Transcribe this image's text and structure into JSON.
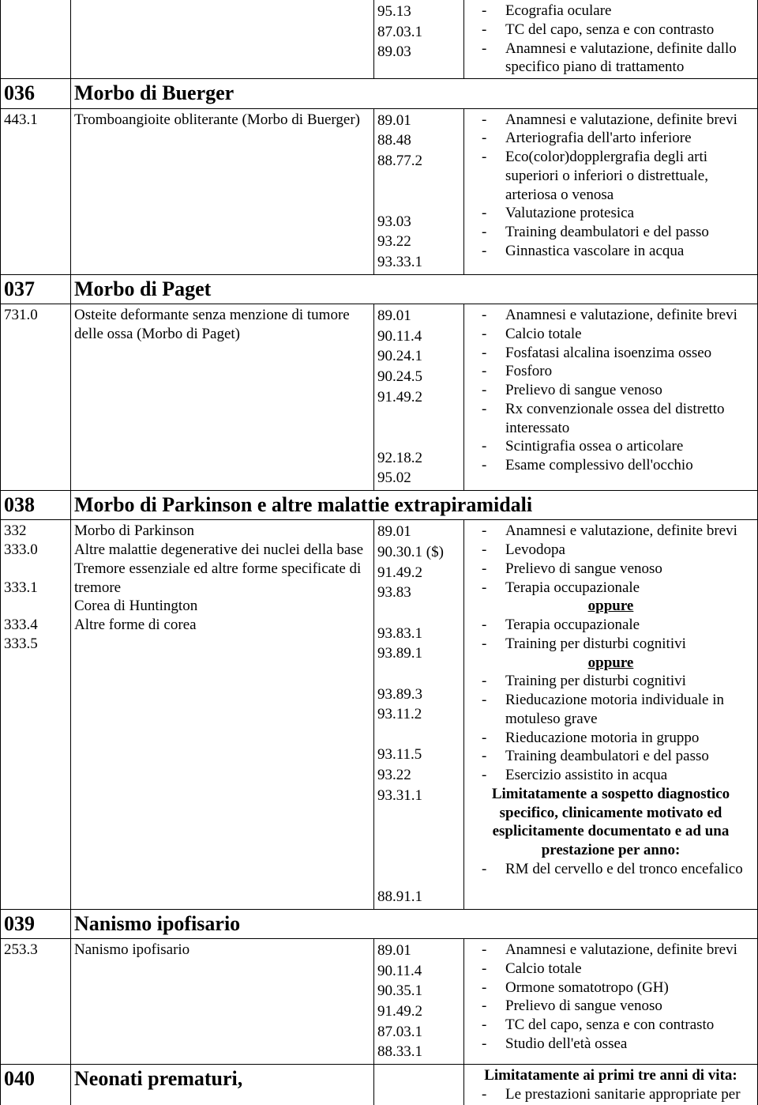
{
  "row0": {
    "codes": [
      "95.13",
      "87.03.1",
      "89.03"
    ],
    "items": [
      "Ecografia oculare",
      "TC del capo, senza e con contrasto",
      "Anamnesi e valutazione, definite dallo specifico piano di trattamento"
    ]
  },
  "s036": {
    "num": "036",
    "name": "Morbo di Buerger"
  },
  "r036": {
    "icd": "443.1",
    "diag": "Tromboangioite obliterante (Morbo di Buerger)",
    "codes": [
      "89.01",
      "88.48",
      "88.77.2",
      "",
      "93.03",
      "93.22",
      "93.33.1"
    ],
    "items": [
      "Anamnesi e valutazione, definite brevi",
      "Arteriografia dell'arto inferiore",
      "Eco(color)dopplergrafia degli arti superiori o inferiori o distrettuale, arteriosa o venosa",
      "Valutazione protesica",
      "Training deambulatori e del passo",
      "Ginnastica vascolare in acqua"
    ]
  },
  "s037": {
    "num": "037",
    "name": "Morbo di Paget"
  },
  "r037": {
    "icd": "731.0",
    "diag": "Osteite deformante senza menzione di tumore delle ossa (Morbo di Paget)",
    "codes": [
      "89.01",
      "90.11.4",
      "90.24.1",
      "90.24.5",
      "91.49.2",
      "",
      "92.18.2",
      "95.02"
    ],
    "items": [
      "Anamnesi e valutazione, definite brevi",
      "Calcio totale",
      "Fosfatasi alcalina isoenzima osseo",
      "Fosforo",
      "Prelievo di sangue venoso",
      "Rx convenzionale ossea del distretto interessato",
      "Scintigrafia ossea o articolare",
      "Esame complessivo dell'occhio"
    ]
  },
  "s038": {
    "num": "038",
    "name": "Morbo di Parkinson e altre malattie extrapiramidali"
  },
  "r038": {
    "icd": [
      "332",
      "333.0",
      "",
      "333.1",
      "",
      "333.4",
      "333.5"
    ],
    "diag": [
      "Morbo di Parkinson",
      "Altre malattie degenerative dei nuclei della base",
      "Tremore essenziale ed altre forme specificate di tremore",
      "Corea di Huntington",
      "Altre forme di corea"
    ],
    "codes": [
      "89.01",
      "90.30.1 ($)",
      "91.49.2",
      "93.83",
      "",
      "93.83.1",
      "93.89.1",
      "",
      "93.89.3",
      "93.11.2",
      "",
      "93.11.5",
      "93.22",
      "93.31.1",
      "",
      "",
      "",
      "",
      "88.91.1"
    ],
    "items": {
      "i0": "Anamnesi e valutazione, definite brevi",
      "i1": "Levodopa",
      "i2": "Prelievo di sangue venoso",
      "i3": "Terapia occupazionale",
      "opp1": "oppure",
      "i4": "Terapia occupazionale",
      "i5": "Training per disturbi cognitivi",
      "opp2": "oppure",
      "i6": "Training per disturbi cognitivi",
      "i7": "Rieducazione motoria individuale in motuleso grave",
      "i8": "Rieducazione motoria in gruppo",
      "i9": "Training deambulatori e del passo",
      "i10": "Esercizio assistito in acqua",
      "note": "Limitatamente a sospetto diagnostico specifico, clinicamente motivato ed esplicitamente documentato e ad una prestazione per anno:",
      "i11": "RM del cervello e del tronco encefalico"
    }
  },
  "s039": {
    "num": "039",
    "name": "Nanismo ipofisario"
  },
  "r039": {
    "icd": "253.3",
    "diag": "Nanismo ipofisario",
    "codes": [
      "89.01",
      "90.11.4",
      "90.35.1",
      "91.49.2",
      "87.03.1",
      "88.33.1"
    ],
    "items": [
      "Anamnesi e valutazione, definite brevi",
      "Calcio totale",
      "Ormone somatotropo (GH)",
      "Prelievo di sangue venoso",
      "TC del capo, senza e con contrasto",
      "Studio dell'età ossea"
    ]
  },
  "s040": {
    "num": "040",
    "name": "Neonati prematuri,"
  },
  "r040": {
    "note": "Limitatamente ai primi tre anni di vita:",
    "i0": "Le prestazioni sanitarie appropriate per"
  }
}
